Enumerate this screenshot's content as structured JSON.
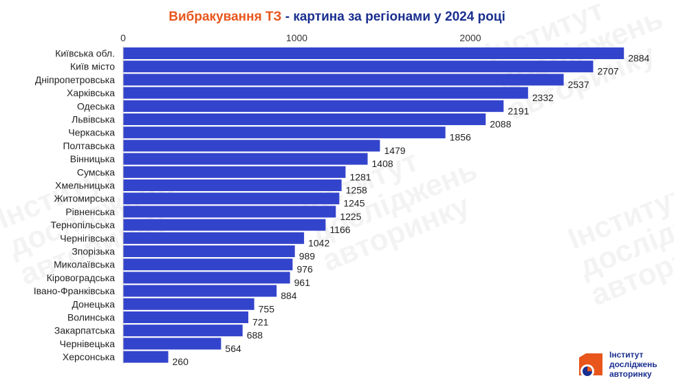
{
  "title": {
    "accent": "Вибракування ТЗ",
    "main": " - картина за регіонами у 2024 році"
  },
  "colors": {
    "bar": "#3344cc",
    "title_accent": "#e8561c",
    "title_main": "#1a2f8f",
    "logo_orange": "#e8561c",
    "logo_blue": "#1a2f8f"
  },
  "logo": {
    "icon": "institute-logo-icon",
    "lines": [
      "Інститут",
      "досліджень",
      "авторинку"
    ]
  },
  "chart_data": {
    "type": "bar",
    "orientation": "horizontal",
    "xaxis_position": "top",
    "xlim": [
      0,
      2884
    ],
    "xticks": [
      0,
      1000,
      2000
    ],
    "grid": false,
    "legend": false,
    "categories": [
      "Київська обл.",
      "Київ місто",
      "Дніпропетровська",
      "Харківська",
      "Одеська",
      "Львівська",
      "Черкаська",
      "Полтавська",
      "Вінницька",
      "Сумська",
      "Хмельницька",
      "Житомирська",
      "Рівненська",
      "Тернопільська",
      "Чернігівська",
      "Зпорізька",
      "Миколаївська",
      "Кіровоградська",
      "Івано-Франківська",
      "Донецька",
      "Волинська",
      "Закарпатська",
      "Чернівецька",
      "Херсонська"
    ],
    "values": [
      2884,
      2707,
      2537,
      2332,
      2191,
      2088,
      1856,
      1479,
      1408,
      1281,
      1258,
      1245,
      1225,
      1166,
      1042,
      989,
      976,
      961,
      884,
      755,
      721,
      688,
      564,
      260
    ]
  }
}
